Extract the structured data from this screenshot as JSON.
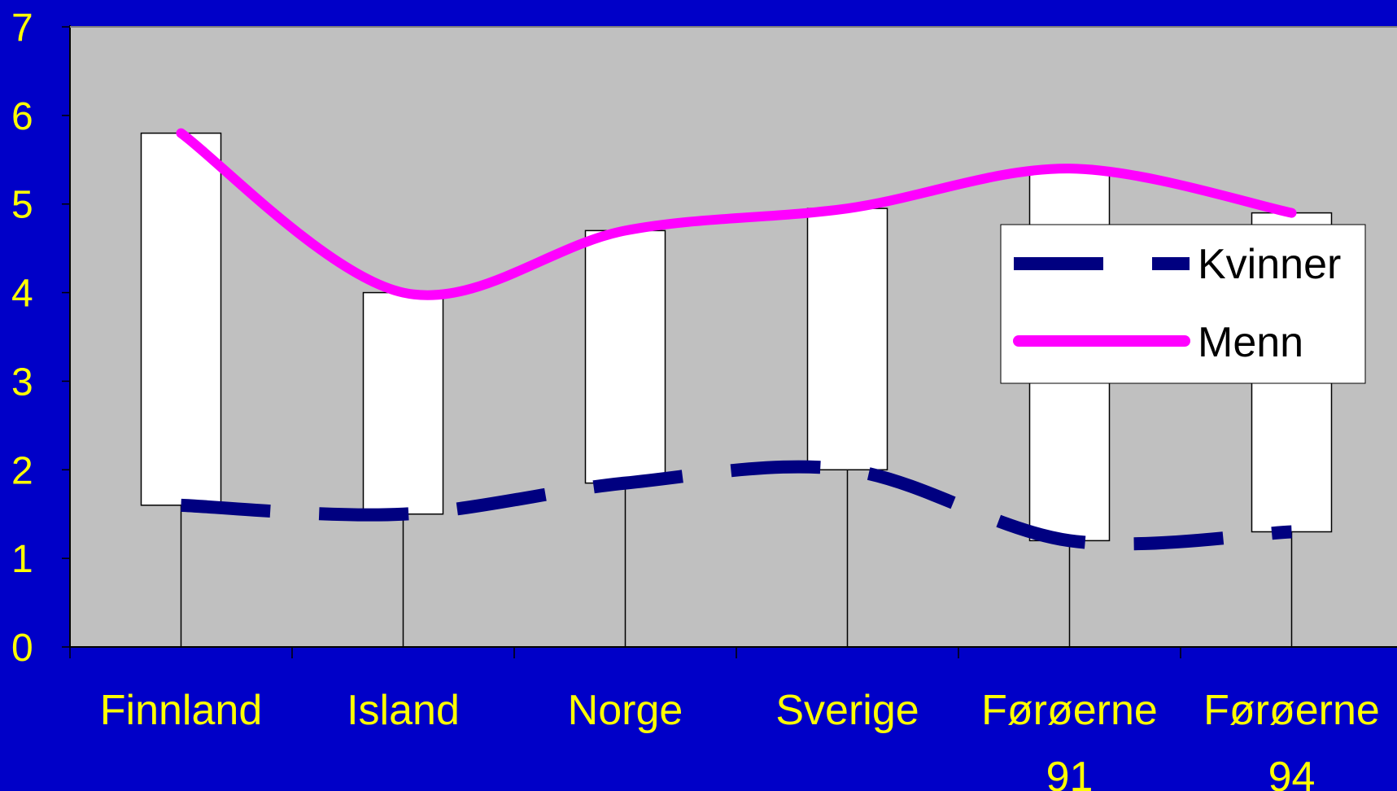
{
  "chart_data": {
    "type": "line",
    "categories": [
      [
        "Finnland"
      ],
      [
        "Island"
      ],
      [
        "Norge"
      ],
      [
        "Sverige"
      ],
      [
        "Førøerne",
        "91"
      ],
      [
        "Førøerne",
        "94"
      ]
    ],
    "ylim": [
      0,
      7
    ],
    "yticks": [
      "0",
      "1",
      "2",
      "3",
      "4",
      "5",
      "6",
      "7"
    ],
    "series": [
      {
        "name": "Kvinner",
        "values": [
          1.6,
          1.5,
          1.85,
          2.0,
          1.2,
          1.3
        ],
        "color": "#000080",
        "style": "dashed"
      },
      {
        "name": "Menn",
        "values": [
          5.8,
          4.0,
          4.7,
          4.95,
          5.4,
          4.9
        ],
        "color": "#ff00ff",
        "style": "solid"
      }
    ],
    "high_low_bars": true,
    "legend": "right",
    "colors": {
      "background": "#0000c8",
      "plot_area": "#c0c0c0",
      "labels": "#ffff00"
    }
  }
}
